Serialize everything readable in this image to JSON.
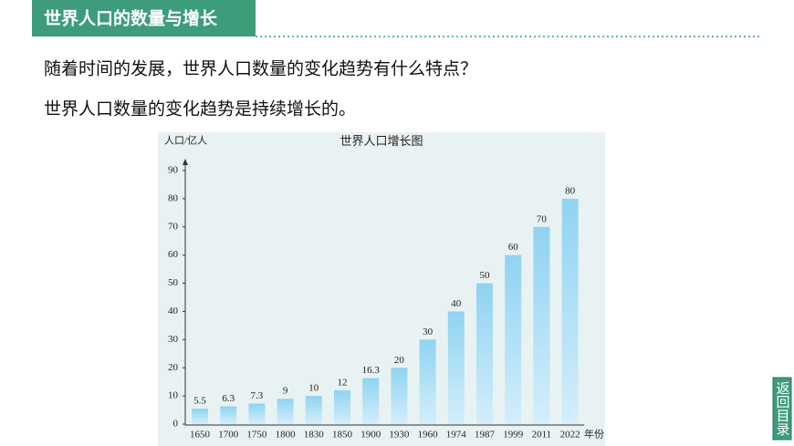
{
  "header": {
    "title": "世界人口的数量与增长"
  },
  "question": "随着时间的发展，世界人口数量的变化趋势有什么特点？",
  "answer": "世界人口数量的变化趋势是持续增长的。",
  "chart_data": {
    "type": "bar",
    "title": "世界人口增长图",
    "y_label": "人口/亿人",
    "x_label": "年份",
    "categories": [
      "1650",
      "1700",
      "1750",
      "1800",
      "1830",
      "1850",
      "1900",
      "1930",
      "1960",
      "1974",
      "1987",
      "1999",
      "2011",
      "2022"
    ],
    "values": [
      5.5,
      6.3,
      7.3,
      9,
      10,
      12,
      16.3,
      20,
      30,
      40,
      50,
      60,
      70,
      80
    ],
    "color": "#8fd3f2",
    "ylim": [
      0,
      90
    ],
    "yticks": [
      0,
      10,
      20,
      30,
      40,
      50,
      60,
      70,
      80,
      90
    ]
  },
  "nav_button": "返回目录"
}
